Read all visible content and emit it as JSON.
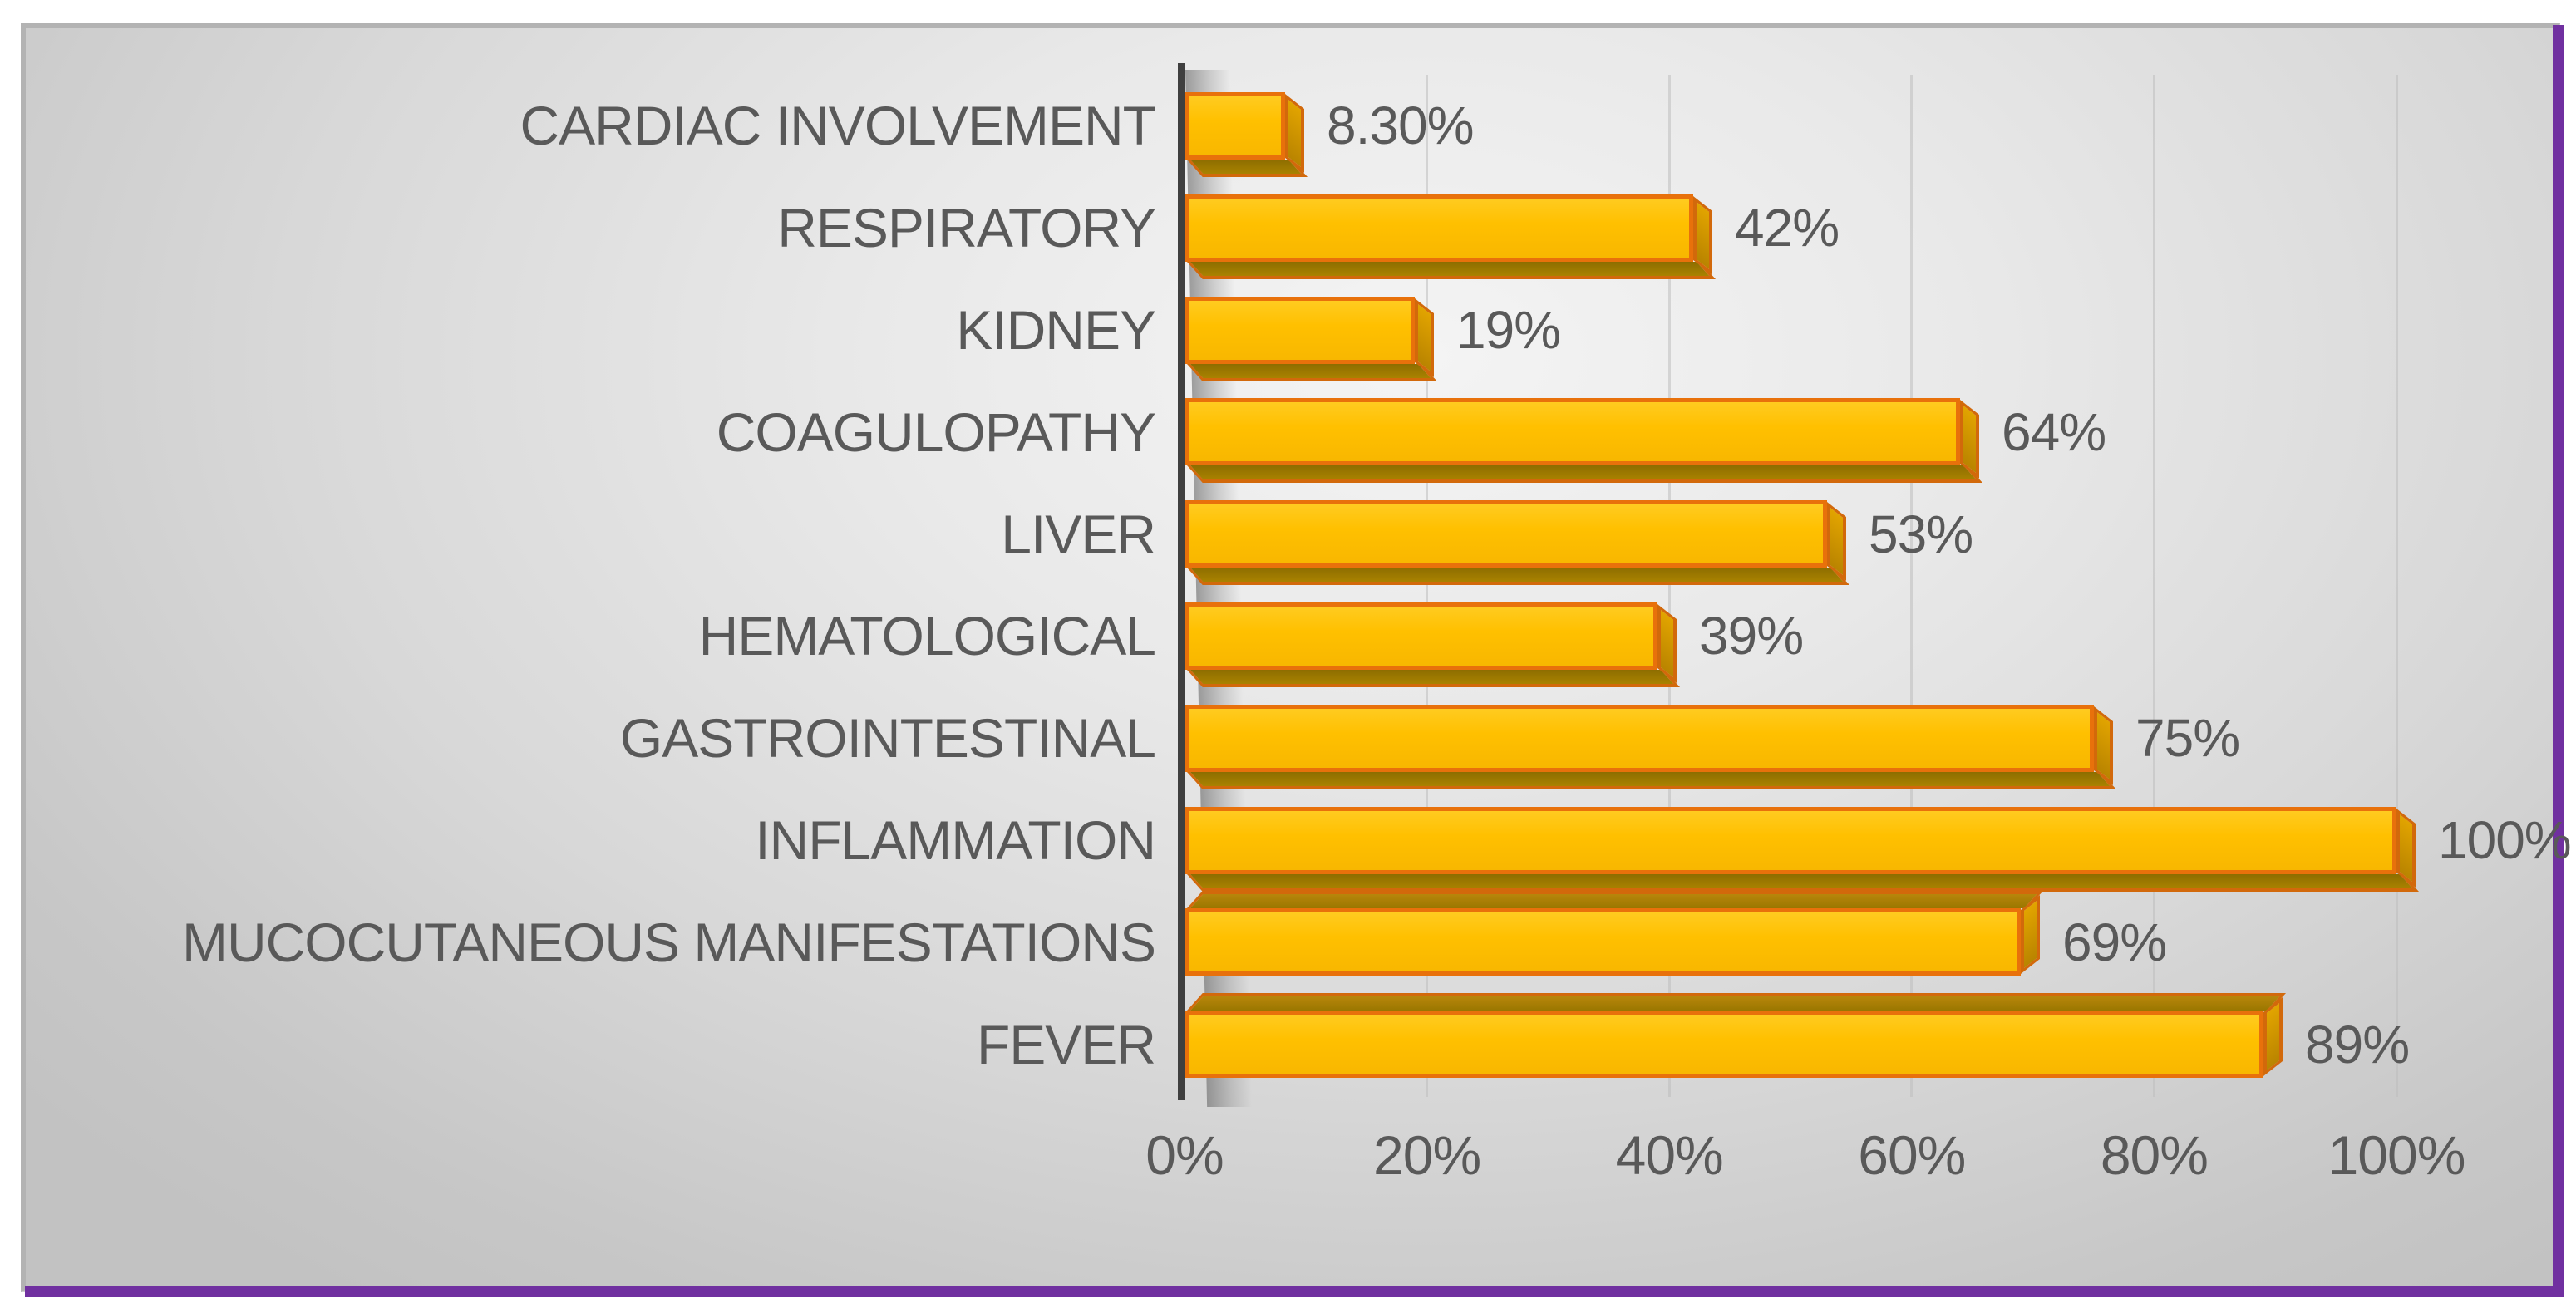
{
  "chart_data": {
    "type": "bar",
    "orientation": "horizontal",
    "title": "",
    "xlabel": "",
    "ylabel": "",
    "categories": [
      "CARDIAC INVOLVEMENT",
      "RESPIRATORY",
      "KIDNEY",
      "COAGULOPATHY",
      "LIVER",
      "HEMATOLOGICAL",
      "GASTROINTESTINAL",
      "INFLAMMATION",
      "MUCOCUTANEOUS MANIFESTATIONS",
      "FEVER"
    ],
    "values": [
      8.3,
      42,
      19,
      64,
      53,
      39,
      75,
      100,
      69,
      89
    ],
    "data_labels": [
      "8.30%",
      "42%",
      "19%",
      "64%",
      "53%",
      "39%",
      "75%",
      "100%",
      "69%",
      "89%"
    ],
    "x_ticks": [
      "0%",
      "20%",
      "40%",
      "60%",
      "80%",
      "100%"
    ],
    "x_tick_values": [
      0,
      20,
      40,
      60,
      80,
      100
    ],
    "xlim": [
      0,
      100
    ],
    "grid": "vertical-gridlines-on",
    "legend": "none",
    "category_order": "top-to-bottom as listed"
  },
  "colors": {
    "bar_fill": "#FFC000",
    "bar_border": "#E8710B",
    "bar_side_3d": "#A98200",
    "label_text": "#595959",
    "axis_line": "#3F3F3F",
    "frame_accent_purple": "#7030A0",
    "frame_gray": "#B3B3B3",
    "background": "#D9D9D9"
  }
}
